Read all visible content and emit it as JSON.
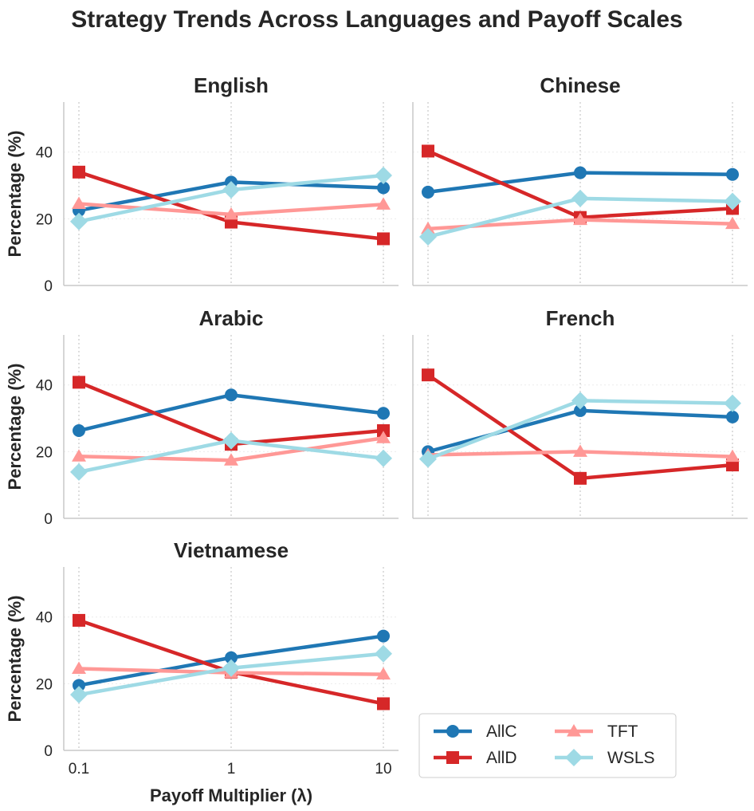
{
  "figure_title": "Strategy Trends Across Languages and Payoff Scales",
  "colors": {
    "AllC": "#1f77b4",
    "AllD": "#d62728",
    "TFT": "#ff9896",
    "WSLS": "#9edae5"
  },
  "chart_data": [
    {
      "type": "line",
      "title": "English",
      "xlabel": "",
      "ylabel": "Percentage (%)",
      "x_scale": "log",
      "categories": [
        "0.1",
        "1",
        "10"
      ],
      "ylim": [
        0,
        55
      ],
      "yticks": [
        0,
        20,
        40
      ],
      "series": [
        {
          "name": "AllC",
          "values": [
            22.5,
            31.0,
            29.3
          ]
        },
        {
          "name": "AllD",
          "values": [
            34.0,
            19.0,
            14.0
          ]
        },
        {
          "name": "TFT",
          "values": [
            24.5,
            21.3,
            24.3
          ]
        },
        {
          "name": "WSLS",
          "values": [
            19.2,
            28.7,
            33.0
          ]
        }
      ]
    },
    {
      "type": "line",
      "title": "Chinese",
      "xlabel": "",
      "ylabel": "",
      "x_scale": "log",
      "categories": [
        "0.1",
        "1",
        "10"
      ],
      "ylim": [
        0,
        55
      ],
      "yticks": [
        0,
        20,
        40
      ],
      "series": [
        {
          "name": "AllC",
          "values": [
            28.0,
            33.8,
            33.3
          ]
        },
        {
          "name": "AllD",
          "values": [
            40.3,
            20.4,
            23.1
          ]
        },
        {
          "name": "TFT",
          "values": [
            17.0,
            19.7,
            18.5
          ]
        },
        {
          "name": "WSLS",
          "values": [
            14.6,
            26.1,
            25.2
          ]
        }
      ]
    },
    {
      "type": "line",
      "title": "Arabic",
      "xlabel": "",
      "ylabel": "Percentage (%)",
      "x_scale": "log",
      "categories": [
        "0.1",
        "1",
        "10"
      ],
      "ylim": [
        0,
        55
      ],
      "yticks": [
        0,
        20,
        40
      ],
      "series": [
        {
          "name": "AllC",
          "values": [
            26.3,
            37.0,
            31.5
          ]
        },
        {
          "name": "AllD",
          "values": [
            40.8,
            22.2,
            26.3
          ]
        },
        {
          "name": "TFT",
          "values": [
            18.6,
            17.4,
            24.1
          ]
        },
        {
          "name": "WSLS",
          "values": [
            13.9,
            23.3,
            18.0
          ]
        }
      ]
    },
    {
      "type": "line",
      "title": "French",
      "xlabel": "",
      "ylabel": "",
      "x_scale": "log",
      "categories": [
        "0.1",
        "1",
        "10"
      ],
      "ylim": [
        0,
        55
      ],
      "yticks": [
        0,
        20,
        40
      ],
      "series": [
        {
          "name": "AllC",
          "values": [
            20.0,
            32.3,
            30.4
          ]
        },
        {
          "name": "AllD",
          "values": [
            43.0,
            12.0,
            16.0
          ]
        },
        {
          "name": "TFT",
          "values": [
            19.0,
            20.0,
            18.5
          ]
        },
        {
          "name": "WSLS",
          "values": [
            17.8,
            35.3,
            34.5
          ]
        }
      ]
    },
    {
      "type": "line",
      "title": "Vietnamese",
      "xlabel": "Payoff Multiplier (λ)",
      "ylabel": "Percentage (%)",
      "x_scale": "log",
      "categories": [
        "0.1",
        "1",
        "10"
      ],
      "ylim": [
        0,
        55
      ],
      "yticks": [
        0,
        20,
        40
      ],
      "series": [
        {
          "name": "AllC",
          "values": [
            19.5,
            27.8,
            34.3
          ]
        },
        {
          "name": "AllD",
          "values": [
            39.0,
            23.5,
            14.0
          ]
        },
        {
          "name": "TFT",
          "values": [
            24.5,
            23.3,
            22.8
          ]
        },
        {
          "name": "WSLS",
          "values": [
            16.7,
            24.7,
            29.0
          ]
        }
      ]
    }
  ],
  "legend": {
    "position": "lower-right",
    "entries": [
      {
        "label": "AllC",
        "marker": "circle"
      },
      {
        "label": "TFT",
        "marker": "triangle"
      },
      {
        "label": "AllD",
        "marker": "square"
      },
      {
        "label": "WSLS",
        "marker": "diamond"
      }
    ]
  }
}
